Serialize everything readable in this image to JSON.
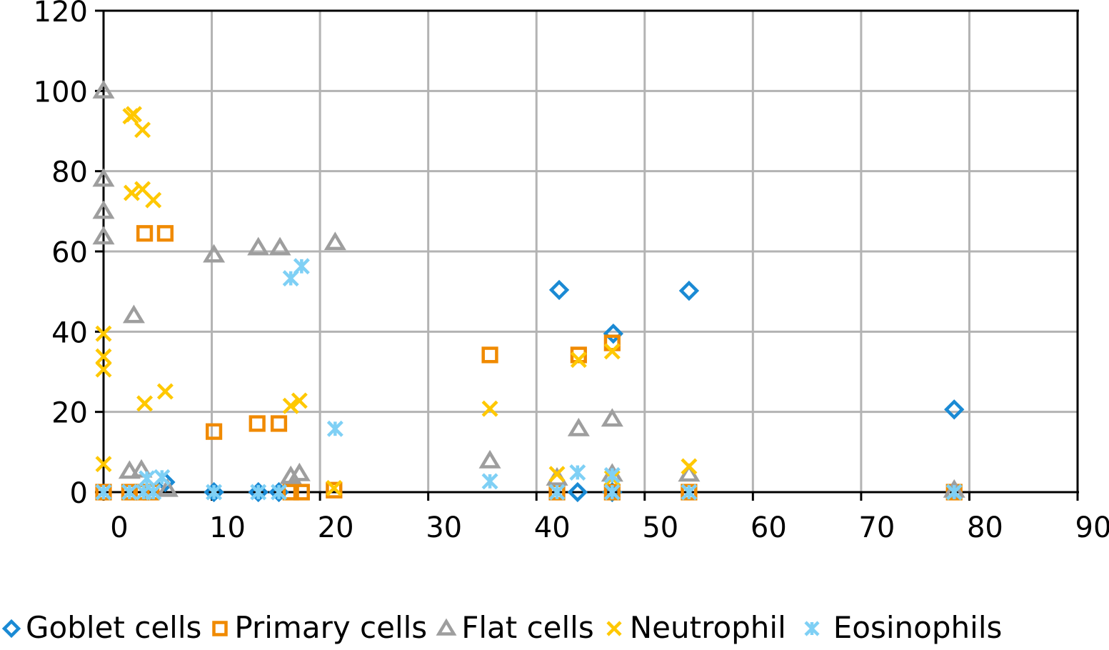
{
  "chart_data": {
    "type": "scatter",
    "title": "",
    "xlabel": "",
    "ylabel": "",
    "xlim": [
      0,
      90
    ],
    "ylim": [
      0,
      120
    ],
    "x_ticks": [
      "0",
      "10",
      "20",
      "30",
      "40",
      "50",
      "60",
      "70",
      "80",
      "90"
    ],
    "y_ticks": [
      "0",
      "20",
      "40",
      "60",
      "80",
      "100",
      "120"
    ],
    "x_tick_values": [
      0,
      10,
      20,
      30,
      40,
      50,
      60,
      70,
      80,
      90
    ],
    "y_tick_values": [
      0,
      20,
      40,
      60,
      80,
      100,
      120
    ],
    "grid": true,
    "legend_position": "bottom",
    "series": [
      {
        "name": "Goblet cells",
        "marker": "diamond",
        "color": "#1a8ad4",
        "points": [
          [
            5.7,
            2.5
          ],
          [
            10.2,
            0
          ],
          [
            14.3,
            0
          ],
          [
            16.2,
            0
          ],
          [
            42.1,
            50.4
          ],
          [
            43.8,
            0
          ],
          [
            47.1,
            39.5
          ],
          [
            47.0,
            0
          ],
          [
            54.1,
            50.2
          ],
          [
            78.6,
            20.6
          ]
        ]
      },
      {
        "name": "Primary cells",
        "marker": "square",
        "color": "#f08a00",
        "points": [
          [
            0,
            0
          ],
          [
            2.4,
            0
          ],
          [
            3.8,
            64.5
          ],
          [
            5.7,
            64.5
          ],
          [
            3.5,
            0
          ],
          [
            4.4,
            0
          ],
          [
            10.2,
            15.1
          ],
          [
            14.2,
            17.1
          ],
          [
            16.2,
            17.1
          ],
          [
            17.3,
            0
          ],
          [
            18.3,
            0
          ],
          [
            21.3,
            0.5
          ],
          [
            35.7,
            34.2
          ],
          [
            41.9,
            0
          ],
          [
            43.9,
            34.2
          ],
          [
            47.0,
            37.2
          ],
          [
            47.0,
            0
          ],
          [
            54.1,
            0
          ],
          [
            78.6,
            0
          ]
        ]
      },
      {
        "name": "Flat cells",
        "marker": "triangle",
        "color": "#9e9e9e",
        "points": [
          [
            0,
            100
          ],
          [
            0,
            78
          ],
          [
            0,
            70
          ],
          [
            0,
            63.6
          ],
          [
            2.8,
            44
          ],
          [
            2.4,
            5.2
          ],
          [
            3.5,
            5.5
          ],
          [
            5.9,
            0.7
          ],
          [
            10.2,
            59.1
          ],
          [
            14.3,
            60.9
          ],
          [
            16.3,
            60.9
          ],
          [
            17.3,
            3.9
          ],
          [
            18.1,
            4.6
          ],
          [
            21.4,
            62.2
          ],
          [
            35.7,
            7.8
          ],
          [
            41.9,
            3.5
          ],
          [
            43.9,
            15.8
          ],
          [
            47.0,
            18.2
          ],
          [
            47.0,
            4.5
          ],
          [
            54.1,
            4.5
          ],
          [
            78.6,
            0.5
          ]
        ]
      },
      {
        "name": "Neutrophil",
        "marker": "x",
        "color": "#ffc800",
        "points": [
          [
            0,
            39.5
          ],
          [
            0,
            33.8
          ],
          [
            0,
            30.6
          ],
          [
            0,
            7
          ],
          [
            2.5,
            93.7
          ],
          [
            2.8,
            94.2
          ],
          [
            3.6,
            90.3
          ],
          [
            2.6,
            74.6
          ],
          [
            3.6,
            75.5
          ],
          [
            4.6,
            72.8
          ],
          [
            3.8,
            22.1
          ],
          [
            5.7,
            25.1
          ],
          [
            17.3,
            21.5
          ],
          [
            18.1,
            22.8
          ],
          [
            21.3,
            1
          ],
          [
            35.7,
            20.8
          ],
          [
            41.9,
            4.5
          ],
          [
            43.9,
            33
          ],
          [
            47.0,
            35.1
          ],
          [
            47.0,
            3.5
          ],
          [
            54.1,
            6.4
          ],
          [
            78.6,
            0
          ]
        ]
      },
      {
        "name": "Eosinophils",
        "marker": "asterisk",
        "color": "#7fd0f5",
        "points": [
          [
            0,
            0
          ],
          [
            2.4,
            0
          ],
          [
            4.0,
            3.4
          ],
          [
            3.7,
            0
          ],
          [
            4.6,
            0
          ],
          [
            5.4,
            3.7
          ],
          [
            10.2,
            0
          ],
          [
            14.3,
            0
          ],
          [
            16.2,
            0
          ],
          [
            17.3,
            53.3
          ],
          [
            18.3,
            56.3
          ],
          [
            21.4,
            15.8
          ],
          [
            35.7,
            2.7
          ],
          [
            41.9,
            0
          ],
          [
            43.8,
            4.9
          ],
          [
            47.0,
            4.2
          ],
          [
            47.0,
            0
          ],
          [
            54.1,
            0
          ],
          [
            78.6,
            0
          ]
        ]
      }
    ]
  },
  "legend": {
    "items": [
      {
        "label": "Goblet cells",
        "marker": "diamond",
        "color": "#1a8ad4"
      },
      {
        "label": "Primary cells",
        "marker": "square",
        "color": "#f08a00"
      },
      {
        "label": "Flat cells",
        "marker": "triangle",
        "color": "#9e9e9e"
      },
      {
        "label": "Neutrophil",
        "marker": "x",
        "color": "#ffc800"
      },
      {
        "label": "Eosinophils",
        "marker": "asterisk",
        "color": "#7fd0f5"
      }
    ]
  }
}
